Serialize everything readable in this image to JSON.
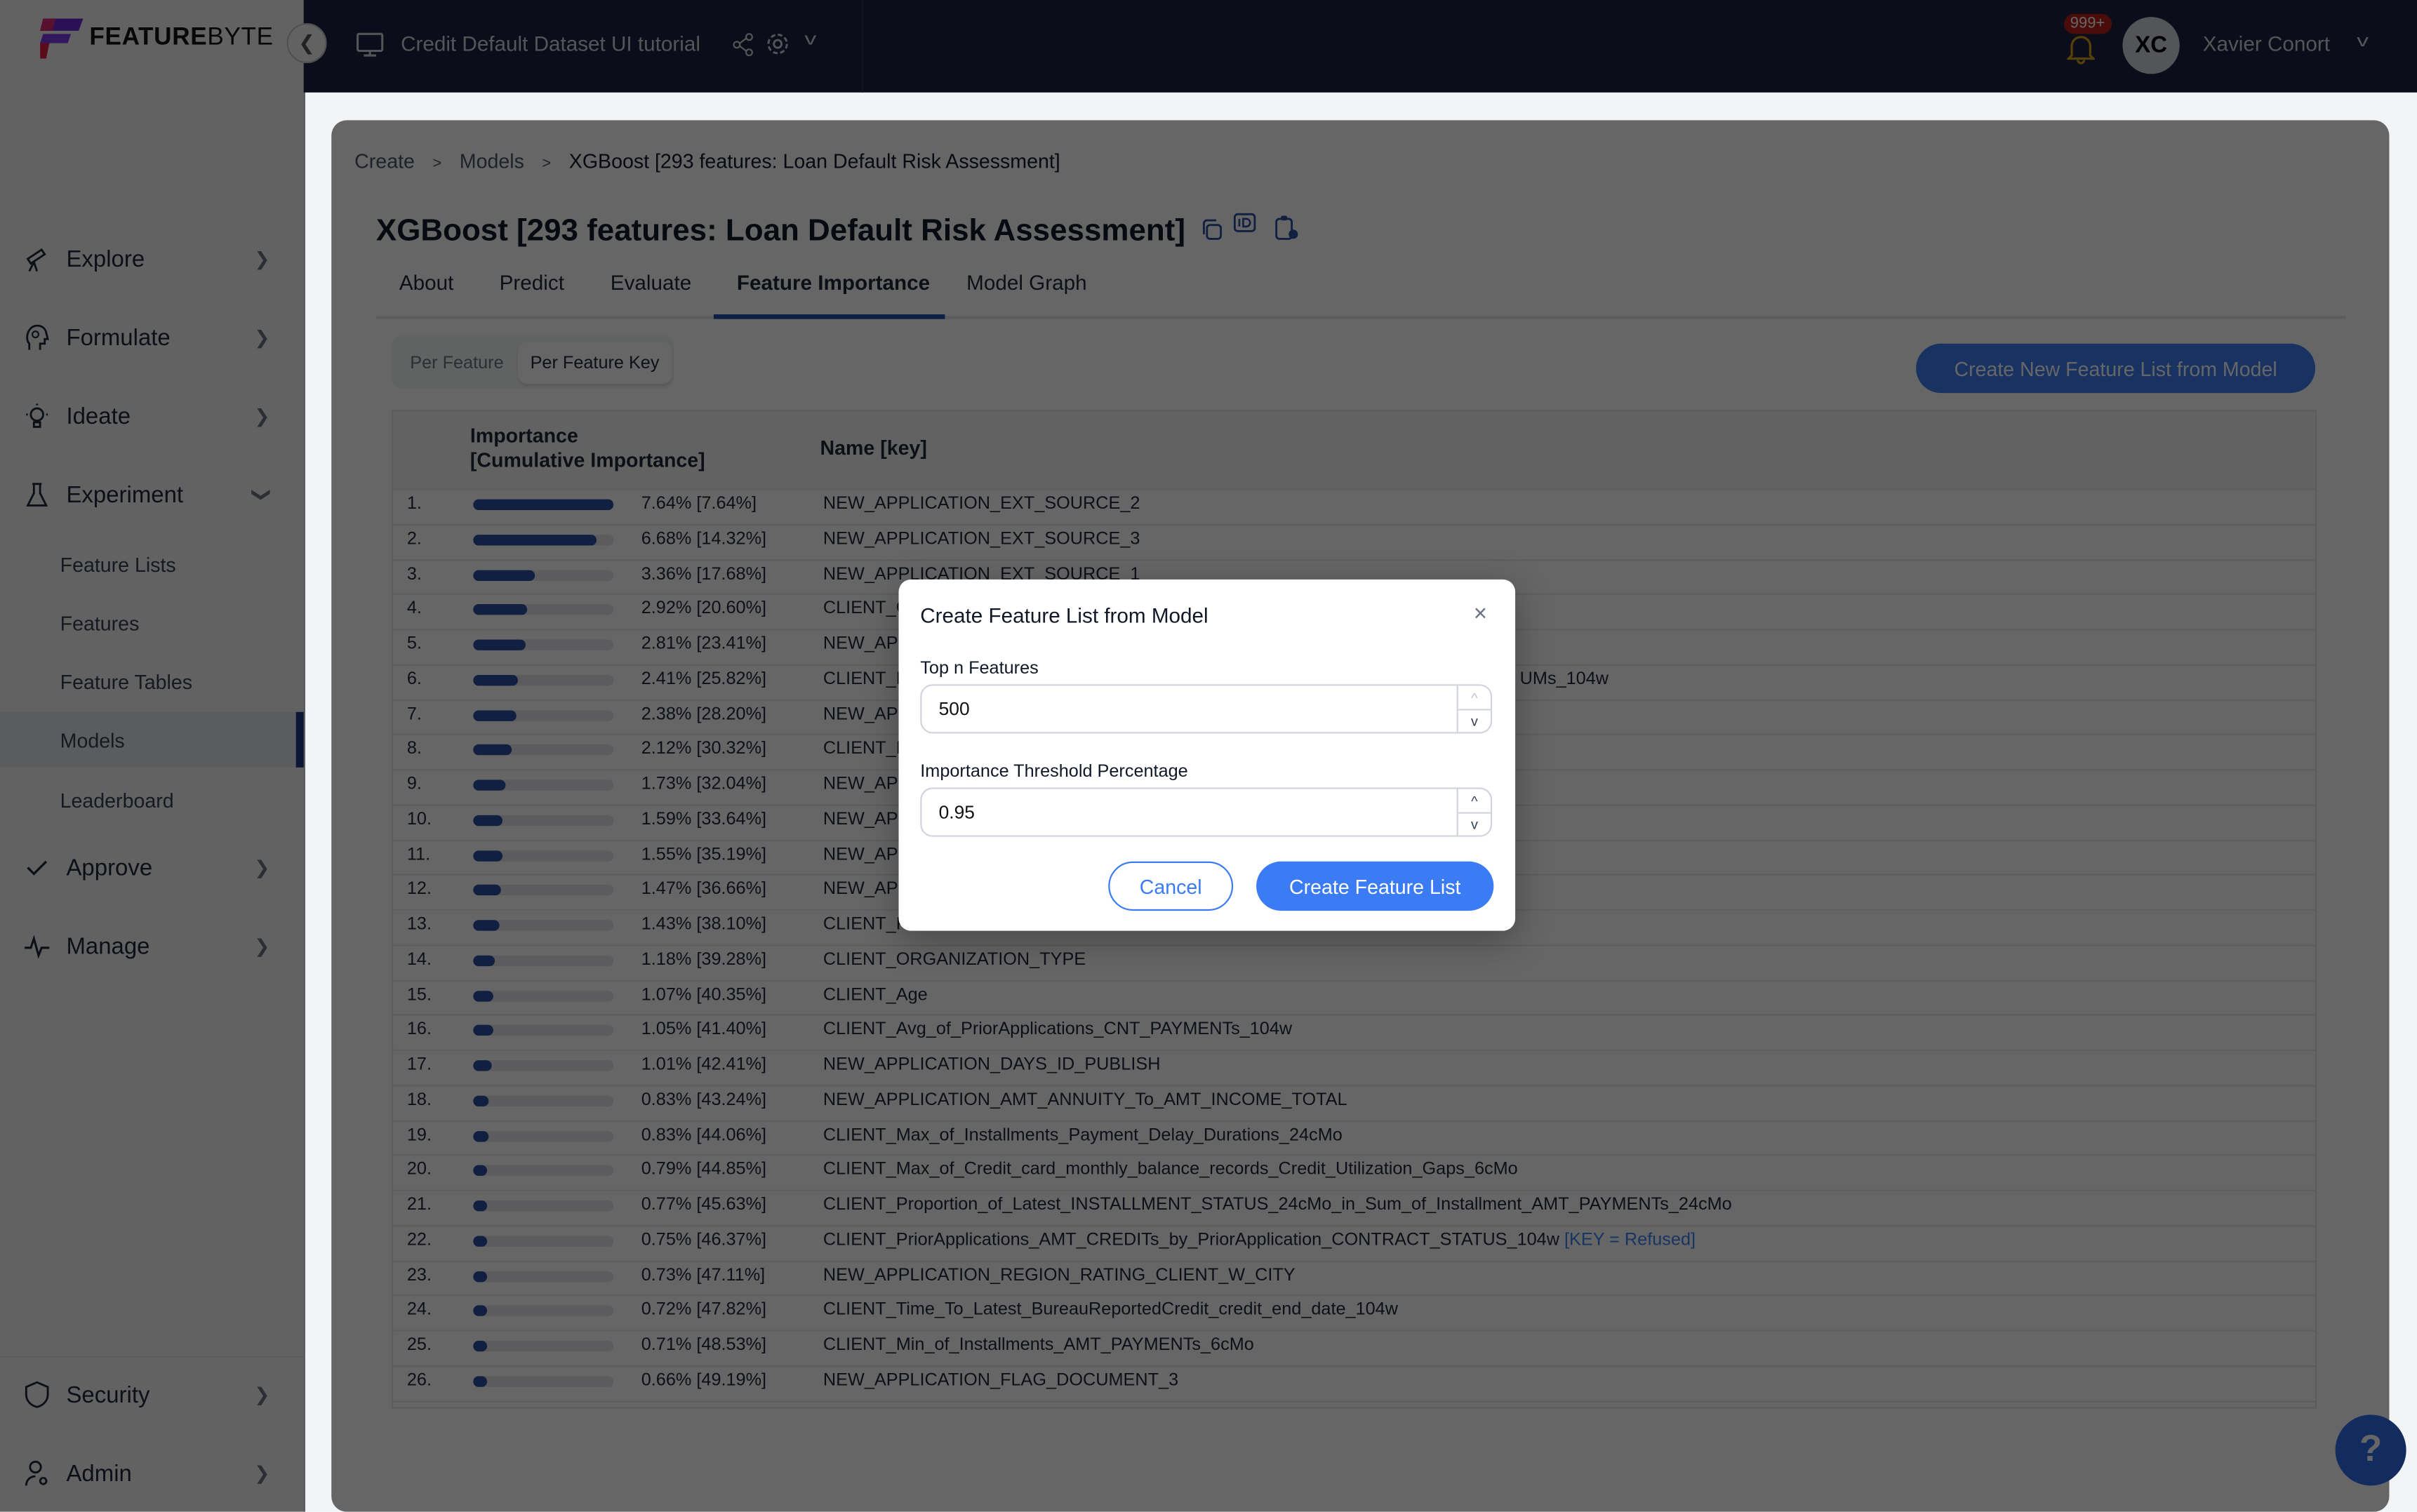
{
  "brand": {
    "logo_text_bold": "FEATURE",
    "logo_text_light": "BYTE"
  },
  "topbar": {
    "catalog_title": "Credit Default Dataset UI tutorial",
    "notification_count": "999+",
    "avatar_initials": "XC",
    "user_name": "Xavier Conort"
  },
  "sidebar": {
    "items": [
      {
        "label": "Explore",
        "icon": "telescope-icon"
      },
      {
        "label": "Formulate",
        "icon": "head-gear-icon"
      },
      {
        "label": "Ideate",
        "icon": "lightbulb-icon"
      },
      {
        "label": "Experiment",
        "icon": "flask-icon"
      },
      {
        "label": "Approve",
        "icon": "check-icon"
      },
      {
        "label": "Manage",
        "icon": "pulse-icon"
      }
    ],
    "experiment_children": [
      "Feature Lists",
      "Features",
      "Feature Tables",
      "Models",
      "Leaderboard"
    ],
    "active_child": "Models",
    "bottom_items": [
      {
        "label": "Security",
        "icon": "shield-icon"
      },
      {
        "label": "Admin",
        "icon": "user-gear-icon"
      }
    ]
  },
  "breadcrumb": [
    "Create",
    "Models",
    "XGBoost [293 features: Loan Default Risk Assessment]"
  ],
  "page_title": "XGBoost [293 features: Loan Default Risk Assessment]",
  "tabs": [
    "About",
    "Predict",
    "Evaluate",
    "Feature Importance",
    "Model Graph"
  ],
  "active_tab": "Feature Importance",
  "segmented": {
    "options": [
      "Per Feature",
      "Per Feature Key"
    ],
    "selected": "Per Feature Key"
  },
  "create_new_button": "Create New Feature List from Model",
  "table": {
    "headers": {
      "importance_line1": "Importance",
      "importance_line2": "[Cumulative Importance]",
      "name": "Name [key]"
    },
    "rows": [
      {
        "rank": "1.",
        "importance": "7.64%",
        "cumulative": "[7.64%]",
        "name": "NEW_APPLICATION_EXT_SOURCE_2"
      },
      {
        "rank": "2.",
        "importance": "6.68%",
        "cumulative": "[14.32%]",
        "name": "NEW_APPLICATION_EXT_SOURCE_3"
      },
      {
        "rank": "3.",
        "importance": "3.36%",
        "cumulative": "[17.68%]",
        "name": "NEW_APPLICATION_EXT_SOURCE_1"
      },
      {
        "rank": "4.",
        "importance": "2.92%",
        "cumulative": "[20.60%]",
        "name": "CLIENT_G"
      },
      {
        "rank": "5.",
        "importance": "2.81%",
        "cumulative": "[23.41%]",
        "name": "NEW_APP"
      },
      {
        "rank": "6.",
        "importance": "2.41%",
        "cumulative": "[25.82%]",
        "name": "CLIENT_M",
        "name_tail": "UMs_104w"
      },
      {
        "rank": "7.",
        "importance": "2.38%",
        "cumulative": "[28.20%]",
        "name": "NEW_APP"
      },
      {
        "rank": "8.",
        "importance": "2.12%",
        "cumulative": "[30.32%]",
        "name": "CLIENT_E"
      },
      {
        "rank": "9.",
        "importance": "1.73%",
        "cumulative": "[32.04%]",
        "name": "NEW_APP"
      },
      {
        "rank": "10.",
        "importance": "1.59%",
        "cumulative": "[33.64%]",
        "name": "NEW_APP"
      },
      {
        "rank": "11.",
        "importance": "1.55%",
        "cumulative": "[35.19%]",
        "name": "NEW_APP"
      },
      {
        "rank": "12.",
        "importance": "1.47%",
        "cumulative": "[36.66%]",
        "name": "NEW_APP"
      },
      {
        "rank": "13.",
        "importance": "1.43%",
        "cumulative": "[38.10%]",
        "name": "CLIENT_F"
      },
      {
        "rank": "14.",
        "importance": "1.18%",
        "cumulative": "[39.28%]",
        "name": "CLIENT_ORGANIZATION_TYPE"
      },
      {
        "rank": "15.",
        "importance": "1.07%",
        "cumulative": "[40.35%]",
        "name": "CLIENT_Age"
      },
      {
        "rank": "16.",
        "importance": "1.05%",
        "cumulative": "[41.40%]",
        "name": "CLIENT_Avg_of_PriorApplications_CNT_PAYMENTs_104w"
      },
      {
        "rank": "17.",
        "importance": "1.01%",
        "cumulative": "[42.41%]",
        "name": "NEW_APPLICATION_DAYS_ID_PUBLISH"
      },
      {
        "rank": "18.",
        "importance": "0.83%",
        "cumulative": "[43.24%]",
        "name": "NEW_APPLICATION_AMT_ANNUITY_To_AMT_INCOME_TOTAL"
      },
      {
        "rank": "19.",
        "importance": "0.83%",
        "cumulative": "[44.06%]",
        "name": "CLIENT_Max_of_Installments_Payment_Delay_Durations_24cMo"
      },
      {
        "rank": "20.",
        "importance": "0.79%",
        "cumulative": "[44.85%]",
        "name": "CLIENT_Max_of_Credit_card_monthly_balance_records_Credit_Utilization_Gaps_6cMo"
      },
      {
        "rank": "21.",
        "importance": "0.77%",
        "cumulative": "[45.63%]",
        "name": "CLIENT_Proportion_of_Latest_INSTALLMENT_STATUS_24cMo_in_Sum_of_Installment_AMT_PAYMENTs_24cMo"
      },
      {
        "rank": "22.",
        "importance": "0.75%",
        "cumulative": "[46.37%]",
        "name": "CLIENT_PriorApplications_AMT_CREDITs_by_PriorApplication_CONTRACT_STATUS_104w",
        "key": "[KEY = Refused]"
      },
      {
        "rank": "23.",
        "importance": "0.73%",
        "cumulative": "[47.11%]",
        "name": "NEW_APPLICATION_REGION_RATING_CLIENT_W_CITY"
      },
      {
        "rank": "24.",
        "importance": "0.72%",
        "cumulative": "[47.82%]",
        "name": "CLIENT_Time_To_Latest_BureauReportedCredit_credit_end_date_104w"
      },
      {
        "rank": "25.",
        "importance": "0.71%",
        "cumulative": "[48.53%]",
        "name": "CLIENT_Min_of_Installments_AMT_PAYMENTs_6cMo"
      },
      {
        "rank": "26.",
        "importance": "0.66%",
        "cumulative": "[49.19%]",
        "name": "NEW_APPLICATION_FLAG_DOCUMENT_3"
      }
    ]
  },
  "modal": {
    "title": "Create Feature List from Model",
    "top_n_label": "Top n Features",
    "top_n_value": "500",
    "threshold_label": "Importance Threshold Percentage",
    "threshold_value": "0.95",
    "cancel": "Cancel",
    "submit": "Create Feature List"
  },
  "help_label": "?",
  "colors": {
    "accent": "#3b7cf5",
    "bar": "#2b4fa3",
    "topbar": "#1b2240",
    "badge": "#b91c1c"
  }
}
